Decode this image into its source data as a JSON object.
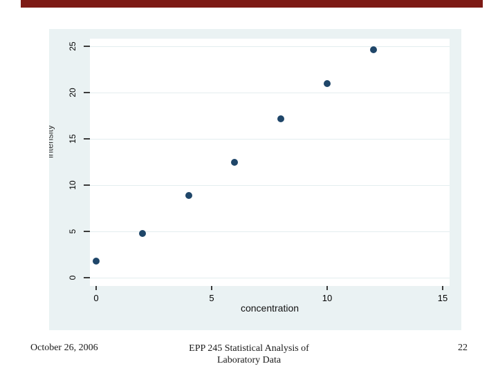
{
  "slide": {
    "accent_bar_color": "#7d1a15",
    "footer": {
      "date": "October 26, 2006",
      "course_line1": "EPP 245 Statistical Analysis of",
      "course_line2": "Laboratory Data",
      "page_number": "22"
    }
  },
  "chart_data": {
    "type": "scatter",
    "title": "",
    "xlabel": "concentration",
    "ylabel": "intensity",
    "x": [
      0,
      2,
      4,
      6,
      8,
      10,
      12
    ],
    "y": [
      1.8,
      4.8,
      8.9,
      12.5,
      17.2,
      21.0,
      24.6
    ],
    "x_ticks": [
      0,
      5,
      10,
      15
    ],
    "y_ticks": [
      0,
      5,
      10,
      15,
      20,
      25
    ],
    "xlim": [
      -2.1,
      15.6
    ],
    "ylim": [
      -0.9,
      25.9
    ],
    "grid": "horizontal-only",
    "legend": "none",
    "marker_color": "#1f4669",
    "outer_background": "#eaf2f3",
    "plot_background": "#ffffff",
    "gridline_color": "#e3edef",
    "tick_color": "#3a3a3a"
  }
}
